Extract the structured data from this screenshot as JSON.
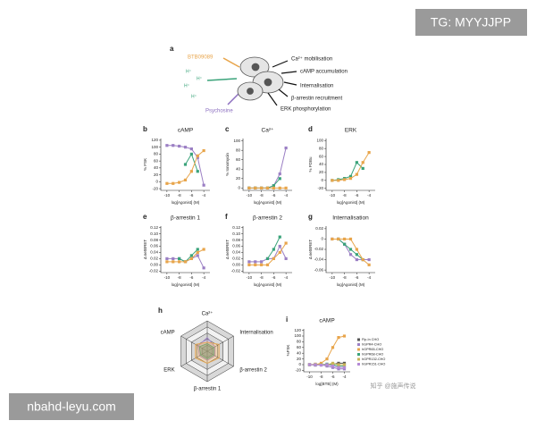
{
  "watermarks": {
    "top": "TG: MYYJJPP",
    "bottom": "nbahd-leyu.com",
    "source": "知乎 @施声传说"
  },
  "panel_a": {
    "label": "a",
    "ligands": [
      "BTB09089",
      "H⁺",
      "Psychosine"
    ],
    "outputs": [
      "Ca²⁺ mobilisation",
      "cAMP accumulation",
      "Internalisation",
      "β-arrestin recruitment",
      "ERK phosphorylation"
    ]
  },
  "chart_data": [
    {
      "type": "line",
      "label": "b",
      "title": "cAMP",
      "ylabel": "% FSK",
      "xlabel": "log[Agonist] (M)",
      "x": [
        -10,
        -9,
        -8,
        -7,
        -6,
        -5,
        -4
      ],
      "xlim": [
        -11,
        -3
      ],
      "xticks": [
        -10,
        -8,
        -6,
        -4
      ],
      "ylim": [
        -25,
        125
      ],
      "yticks": [
        -20,
        0,
        20,
        40,
        60,
        80,
        100,
        120
      ],
      "series": [
        {
          "color": "#9b7fc4",
          "values": [
            105,
            105,
            103,
            100,
            95,
            70,
            -10
          ]
        },
        {
          "color": "#3aa37a",
          "values": [
            null,
            null,
            null,
            50,
            80,
            30,
            null
          ]
        },
        {
          "color": "#e8a54b",
          "values": [
            -5,
            -5,
            -2,
            5,
            30,
            75,
            90
          ]
        }
      ]
    },
    {
      "type": "line",
      "label": "c",
      "title": "Ca²⁺",
      "ylabel": "% Ionomycin",
      "xlabel": "log[Agonist] (M)",
      "x": [
        -10,
        -9,
        -8,
        -7,
        -6,
        -5,
        -4
      ],
      "xlim": [
        -11,
        -3
      ],
      "xticks": [
        -10,
        -8,
        -6,
        -4
      ],
      "ylim": [
        -5,
        105
      ],
      "yticks": [
        0,
        20,
        40,
        60,
        80,
        100
      ],
      "series": [
        {
          "color": "#9b7fc4",
          "values": [
            0,
            0,
            0,
            0,
            5,
            30,
            85
          ]
        },
        {
          "color": "#3aa37a",
          "values": [
            0,
            0,
            0,
            0,
            5,
            20,
            null
          ]
        },
        {
          "color": "#e8a54b",
          "values": [
            0,
            0,
            0,
            0,
            0,
            0,
            0
          ]
        }
      ]
    },
    {
      "type": "line",
      "label": "d",
      "title": "ERK",
      "ylabel": "% PDBu",
      "xlabel": "log[Agonist] (M)",
      "x": [
        -10,
        -9,
        -8,
        -7,
        -6,
        -5,
        -4
      ],
      "xlim": [
        -11,
        -3
      ],
      "xticks": [
        -10,
        -8,
        -6,
        -4
      ],
      "ylim": [
        -25,
        105
      ],
      "yticks": [
        -20,
        0,
        20,
        40,
        60,
        80,
        100
      ],
      "series": [
        {
          "color": "#3aa37a",
          "values": [
            0,
            2,
            5,
            10,
            45,
            30,
            null
          ]
        },
        {
          "color": "#e8a54b",
          "values": [
            0,
            0,
            2,
            5,
            15,
            45,
            70
          ]
        }
      ]
    },
    {
      "type": "line",
      "label": "e",
      "title": "β-arrestin 1",
      "ylabel": "Δ netBRET",
      "xlabel": "log[Agonist] (M)",
      "x": [
        -10,
        -9,
        -8,
        -7,
        -6,
        -5,
        -4
      ],
      "xlim": [
        -11,
        -3
      ],
      "xticks": [
        -10,
        -8,
        -6,
        -4
      ],
      "ylim": [
        -0.025,
        0.125
      ],
      "yticks": [
        -0.02,
        {
          "value": 0,
          "label": "0.00"
        },
        0.02,
        0.04,
        0.06,
        0.08,
        {
          "value": 0.1,
          "label": "0.10"
        },
        0.12
      ],
      "series": [
        {
          "color": "#9b7fc4",
          "values": [
            0.02,
            0.02,
            0.02,
            0.01,
            0.02,
            0.03,
            -0.01
          ]
        },
        {
          "color": "#3aa37a",
          "values": [
            null,
            null,
            0.02,
            0.01,
            0.03,
            0.05,
            null
          ]
        },
        {
          "color": "#e8a54b",
          "values": [
            0.01,
            0.01,
            0.01,
            0.01,
            0.02,
            0.04,
            0.05
          ]
        }
      ]
    },
    {
      "type": "line",
      "label": "f",
      "title": "β-arrestin 2",
      "ylabel": "Δ netBRET",
      "xlabel": "log[Agonist] (M)",
      "x": [
        -10,
        -9,
        -8,
        -7,
        -6,
        -5,
        -4
      ],
      "xlim": [
        -11,
        -3
      ],
      "xticks": [
        -10,
        -8,
        -6,
        -4
      ],
      "ylim": [
        -0.025,
        0.125
      ],
      "yticks": [
        -0.02,
        {
          "value": 0,
          "label": "0.00"
        },
        0.02,
        0.04,
        0.06,
        0.08,
        {
          "value": 0.1,
          "label": "0.10"
        },
        0.12
      ],
      "series": [
        {
          "color": "#9b7fc4",
          "values": [
            0.01,
            0.01,
            0.01,
            0.02,
            0.02,
            0.06,
            0.02
          ]
        },
        {
          "color": "#3aa37a",
          "values": [
            null,
            null,
            null,
            0.02,
            0.05,
            0.09,
            null
          ]
        },
        {
          "color": "#e8a54b",
          "values": [
            0,
            0,
            0,
            0,
            0.02,
            0.04,
            0.07
          ]
        }
      ]
    },
    {
      "type": "line",
      "label": "g",
      "title": "Internalisation",
      "ylabel": "Δ netBRET",
      "xlabel": "log[Agonist] (M)",
      "x": [
        -10,
        -9,
        -8,
        -7,
        -6,
        -5,
        -4
      ],
      "xlim": [
        -11,
        -3
      ],
      "xticks": [
        -10,
        -8,
        -6,
        -4
      ],
      "ylim": [
        -0.065,
        0.025
      ],
      "yticks": [
        -0.06,
        -0.04,
        -0.02,
        0,
        0.02
      ],
      "series": [
        {
          "color": "#9b7fc4",
          "values": [
            0,
            0,
            -0.01,
            -0.03,
            -0.04,
            -0.04,
            -0.04
          ]
        },
        {
          "color": "#3aa37a",
          "values": [
            null,
            0,
            -0.01,
            -0.02,
            -0.03,
            -0.04,
            null
          ]
        },
        {
          "color": "#e8a54b",
          "values": [
            0,
            0,
            0,
            0,
            -0.02,
            -0.04,
            -0.05
          ]
        }
      ]
    },
    {
      "type": "radar",
      "label": "h",
      "axes": [
        "Ca²⁺",
        "Internalisation",
        "β-arrestin 2",
        "β-arrestin 1",
        "ERK",
        "cAMP"
      ],
      "rlim": [
        0,
        1
      ],
      "series": [
        {
          "color": "#9b7fc4",
          "values": [
            0.45,
            0.3,
            0.3,
            0.3,
            0.3,
            0.35
          ]
        },
        {
          "color": "#3aa37a",
          "values": [
            0.25,
            0.25,
            0.25,
            0.25,
            0.25,
            0.3
          ]
        },
        {
          "color": "#e8a54b",
          "values": [
            0.3,
            0.45,
            0.45,
            0.4,
            0.45,
            0.45
          ]
        }
      ]
    },
    {
      "type": "line",
      "label": "i",
      "title": "cAMP",
      "ylabel": "%FSK",
      "xlabel": "log[BTB] (M)",
      "x": [
        -10,
        -9,
        -8,
        -7,
        -6,
        -5,
        -4
      ],
      "xlim": [
        -11,
        -3
      ],
      "xticks": [
        -10,
        -8,
        -6,
        -4
      ],
      "ylim": [
        -25,
        125
      ],
      "yticks": [
        -20,
        0,
        20,
        40,
        60,
        80,
        100,
        120
      ],
      "series": [
        {
          "name": "Flp-In CHO",
          "color": "#555555",
          "values": [
            0,
            0,
            0,
            0,
            2,
            5,
            5
          ]
        },
        {
          "name": "hGPR4-CHO",
          "color": "#9b7fc4",
          "values": [
            0,
            -2,
            0,
            -5,
            -10,
            -15,
            -15
          ]
        },
        {
          "name": "hGPR65-CHO",
          "color": "#e8a54b",
          "values": [
            0,
            0,
            5,
            20,
            60,
            95,
            100
          ]
        },
        {
          "name": "hGPR68-CHO",
          "color": "#3aa37a",
          "values": [
            0,
            0,
            0,
            2,
            0,
            -5,
            -5
          ]
        },
        {
          "name": "hGPR132-CHO",
          "color": "#c9b458",
          "values": [
            0,
            2,
            0,
            0,
            5,
            0,
            0
          ]
        },
        {
          "name": "hGPR151-CHO",
          "color": "#b48ad6",
          "values": [
            0,
            0,
            -2,
            0,
            -5,
            -10,
            -10
          ]
        }
      ]
    }
  ]
}
